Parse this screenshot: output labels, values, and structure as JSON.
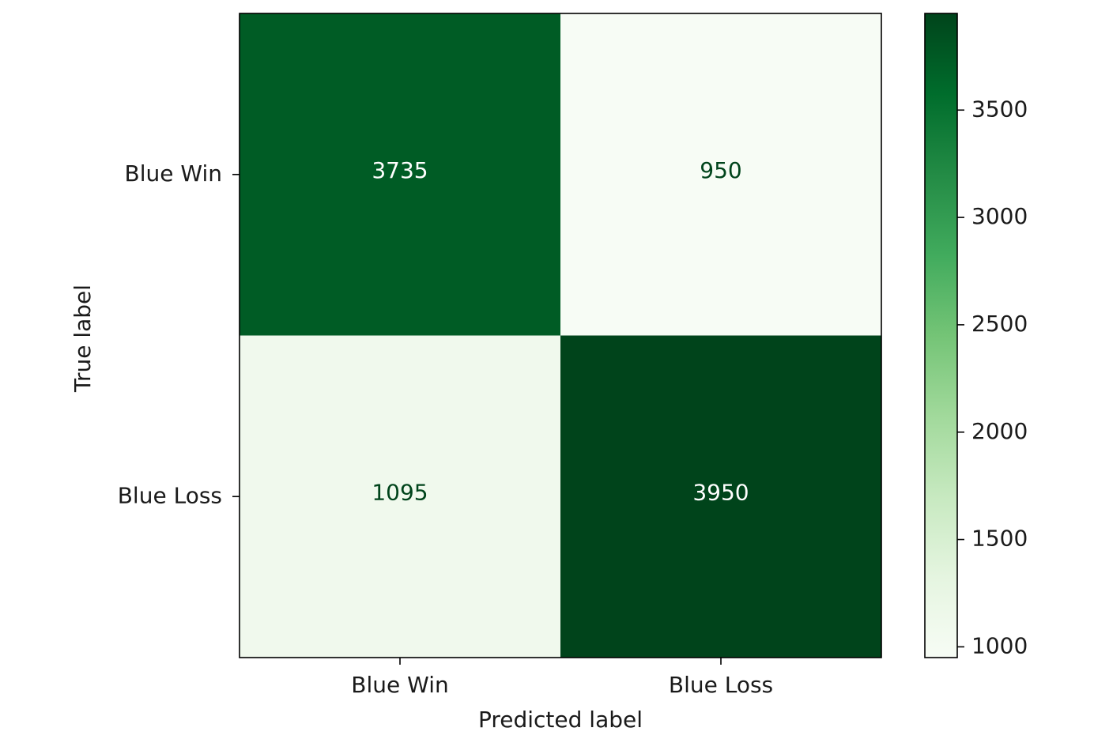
{
  "chart_data": {
    "type": "heatmap",
    "title": "",
    "xlabel": "Predicted label",
    "ylabel": "True label",
    "x_categories": [
      "Blue Win",
      "Blue Loss"
    ],
    "y_categories": [
      "Blue Win",
      "Blue Loss"
    ],
    "values": [
      [
        3735,
        950
      ],
      [
        1095,
        3950
      ]
    ],
    "colormap": "Greens",
    "colorbar": {
      "min": 950,
      "max": 3950,
      "ticks": [
        1000,
        1500,
        2000,
        2500,
        3000,
        3500
      ],
      "tick_labels": [
        "1000",
        "1500",
        "2000",
        "2500",
        "3000",
        "3500"
      ]
    },
    "cell_text_colors": {
      "on_dark": "#ffffff",
      "on_light": "#00441b"
    },
    "grid": false
  }
}
